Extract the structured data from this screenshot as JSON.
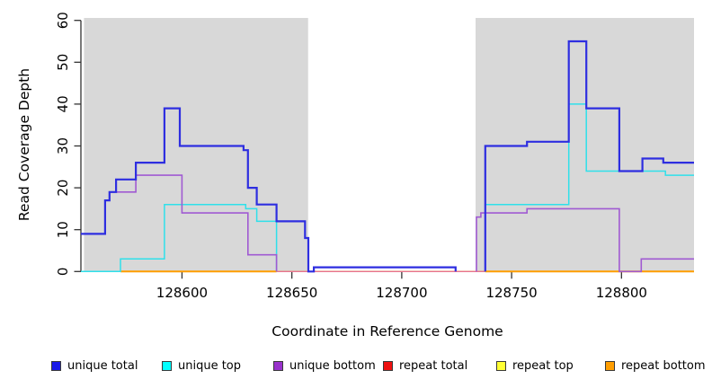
{
  "chart_data": {
    "type": "line",
    "step": true,
    "title": "",
    "xlabel": "Coordinate in Reference Genome",
    "ylabel": "Read Coverage Depth",
    "xlim": [
      128554,
      128833
    ],
    "ylim": [
      0,
      60
    ],
    "x_ticks": [
      128600,
      128650,
      128700,
      128750,
      128800
    ],
    "y_ticks": [
      0,
      10,
      20,
      30,
      40,
      50,
      60
    ],
    "grid": false,
    "panel_background": "#ffffff",
    "shaded_regions": [
      {
        "x0": 128555.4,
        "x1": 128657.4,
        "color": "#d8d8d8"
      },
      {
        "x0": 128733.6,
        "x1": 128833,
        "color": "#d8d8d8"
      }
    ],
    "series": [
      {
        "name": "repeat top",
        "color": "#ffff33",
        "width": 1.4,
        "segments": [
          [
            [
              128572,
              0
            ],
            [
              128833,
              0
            ]
          ]
        ]
      },
      {
        "name": "repeat total",
        "color": "#e8738f",
        "width": 1.4,
        "segments": [
          [
            [
              128643,
              0
            ],
            [
              128833,
              0
            ]
          ]
        ]
      },
      {
        "name": "repeat bottom",
        "color": "#ff9e00",
        "width": 2,
        "segments": [
          [
            [
              128572,
              0
            ],
            [
              128643,
              0
            ]
          ],
          [
            [
              128738,
              0
            ],
            [
              128833,
              0
            ]
          ]
        ]
      },
      {
        "name": "unique top",
        "color": "#2fe0ea",
        "width": 1.5,
        "segments": [
          [
            [
              128554,
              0
            ],
            [
              128572,
              3
            ],
            [
              128592,
              16
            ],
            [
              128629,
              15
            ],
            [
              128634,
              12
            ],
            [
              128643,
              0
            ]
          ],
          [
            [
              128738,
              0
            ],
            [
              128738,
              16
            ],
            [
              128776,
              40
            ],
            [
              128784,
              24
            ],
            [
              128820,
              23
            ],
            [
              128833,
              23
            ]
          ]
        ]
      },
      {
        "name": "unique bottom",
        "color": "#a05ad2",
        "width": 1.6,
        "segments": [
          [
            [
              128554,
              9
            ],
            [
              128565,
              17
            ],
            [
              128567,
              19
            ],
            [
              128579,
              23
            ],
            [
              128600,
              14
            ],
            [
              128630,
              4
            ],
            [
              128643,
              0
            ]
          ],
          [
            [
              128734,
              0
            ],
            [
              128734,
              13
            ],
            [
              128736,
              14
            ],
            [
              128757,
              15
            ],
            [
              128799,
              0
            ],
            [
              128809,
              3
            ],
            [
              128833,
              3
            ]
          ]
        ]
      },
      {
        "name": "unique total",
        "color": "#2e2ee0",
        "width": 2.2,
        "segments": [
          [
            [
              128554,
              9
            ],
            [
              128565,
              17
            ],
            [
              128567,
              19
            ],
            [
              128570,
              22
            ],
            [
              128579,
              26
            ],
            [
              128592,
              39
            ],
            [
              128599,
              30
            ],
            [
              128628,
              29
            ],
            [
              128630,
              20
            ],
            [
              128634,
              16
            ],
            [
              128643,
              12
            ],
            [
              128656,
              8
            ],
            [
              128657.5,
              0
            ],
            [
              128660,
              1
            ],
            [
              128724.5,
              0
            ]
          ],
          [
            [
              128738,
              0
            ],
            [
              128738,
              30
            ],
            [
              128757,
              31
            ],
            [
              128776,
              55
            ],
            [
              128784,
              39
            ],
            [
              128799,
              24
            ],
            [
              128809.5,
              27
            ],
            [
              128819,
              26
            ],
            [
              128833,
              26
            ]
          ]
        ]
      }
    ]
  },
  "legend": {
    "items": [
      {
        "label": "unique total",
        "color": "#1a1ae8"
      },
      {
        "label": "unique top",
        "color": "#00ffff"
      },
      {
        "label": "unique bottom",
        "color": "#9932cc"
      },
      {
        "label": "repeat total",
        "color": "#ee1111"
      },
      {
        "label": "repeat top",
        "color": "#ffff33"
      },
      {
        "label": "repeat bottom",
        "color": "#ff9e00"
      }
    ]
  }
}
